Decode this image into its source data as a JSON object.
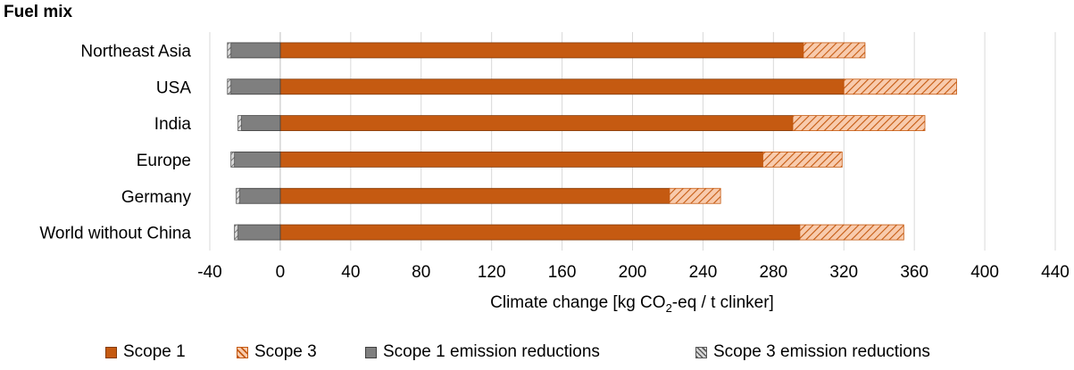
{
  "chart_title": "Fuel mix",
  "chart_data": {
    "type": "bar",
    "orientation": "horizontal",
    "stacked": true,
    "title": "Fuel mix",
    "categories": [
      "Northeast Asia",
      "USA",
      "India",
      "Europe",
      "Germany",
      "World without China"
    ],
    "series": [
      {
        "name": "Scope 1",
        "values": [
          297,
          320,
          291,
          274,
          221,
          295
        ],
        "color": "#C55A11",
        "pattern": "solid"
      },
      {
        "name": "Scope 3",
        "values": [
          35,
          64,
          75,
          45,
          29,
          59
        ],
        "color": "#F4B183",
        "pattern": "hatched"
      },
      {
        "name": "Scope 1 emission reductions",
        "values": [
          -28,
          -28,
          -22,
          -26,
          -23,
          -24
        ],
        "color": "#7F7F7F",
        "pattern": "solid"
      },
      {
        "name": "Scope 3 emission reductions",
        "values": [
          -2,
          -2,
          -2,
          -2,
          -2,
          -2
        ],
        "color": "#A6A6A6",
        "pattern": "hatched"
      }
    ],
    "xlabel_parts": [
      "Climate change [kg CO",
      "2",
      "-eq / t clinker]"
    ],
    "ylabel": "",
    "xlim": [
      -40,
      440
    ],
    "xticks": [
      -40,
      0,
      40,
      80,
      120,
      160,
      200,
      240,
      280,
      320,
      360,
      400,
      440
    ],
    "grid": "vertical",
    "legend_position": "bottom"
  },
  "legend": [
    {
      "label": "Scope 1",
      "icon": "solid-orange-swatch"
    },
    {
      "label": "Scope 3",
      "icon": "hatched-orange-swatch"
    },
    {
      "label": "Scope 1 emission reductions",
      "icon": "solid-gray-swatch"
    },
    {
      "label": "Scope 3 emission reductions",
      "icon": "hatched-gray-swatch"
    }
  ]
}
